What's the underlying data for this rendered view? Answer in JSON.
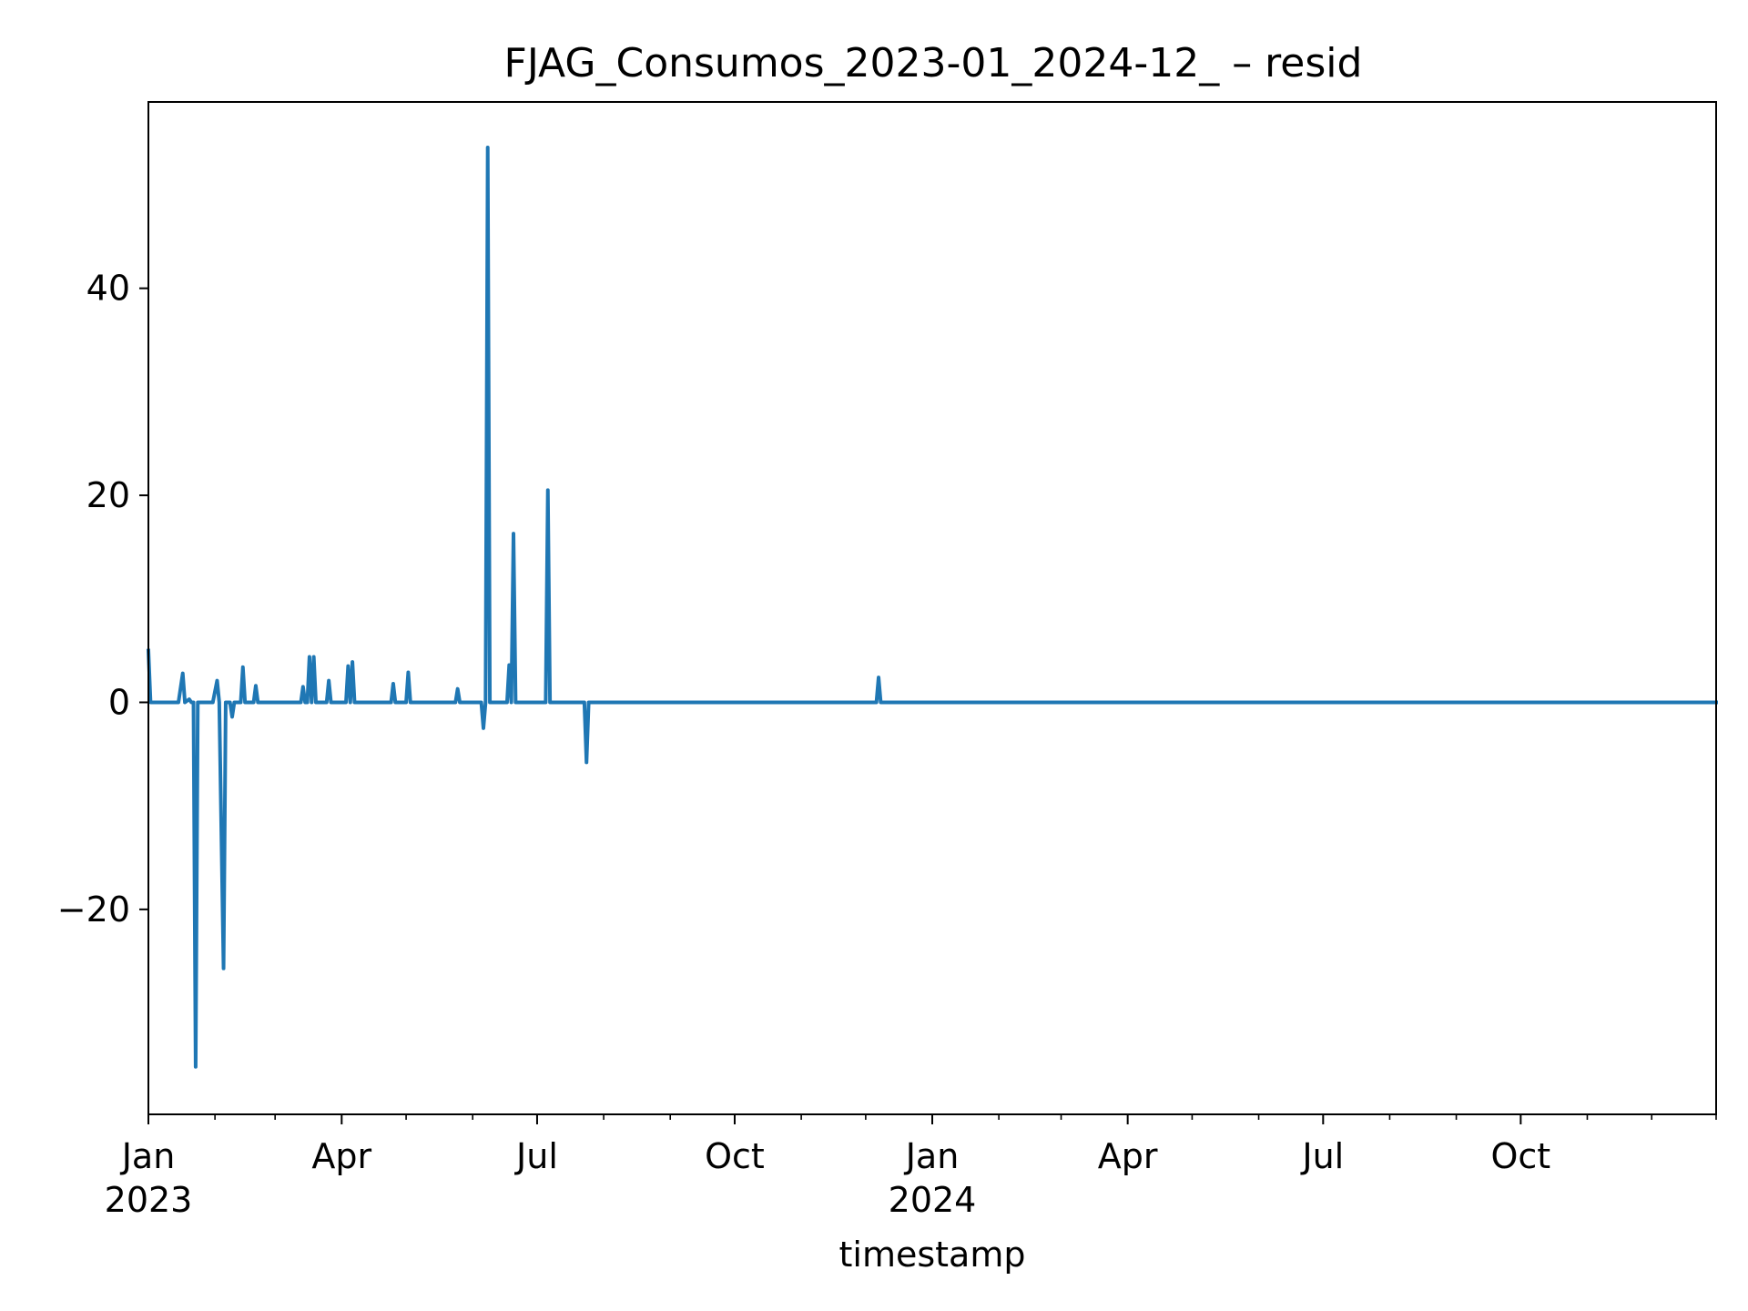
{
  "chart_data": {
    "type": "line",
    "title": "FJAG_Consumos_2023-01_2024-12_ – resid",
    "xlabel": "timestamp",
    "ylabel": "",
    "xlim": [
      "2023-01-01",
      "2024-12-31"
    ],
    "ylim": [
      -39.8,
      58
    ],
    "grid": false,
    "y_ticks": [
      {
        "value": 40,
        "label": "40"
      },
      {
        "value": 20,
        "label": "20"
      },
      {
        "value": 0,
        "label": "0"
      },
      {
        "value": -20,
        "label": "−20"
      }
    ],
    "x_ticks": [
      {
        "date": "2023-01-01",
        "label": "Jan",
        "year_label": "2023"
      },
      {
        "date": "2023-04-01",
        "label": "Apr",
        "year_label": ""
      },
      {
        "date": "2023-07-01",
        "label": "Jul",
        "year_label": ""
      },
      {
        "date": "2023-10-01",
        "label": "Oct",
        "year_label": ""
      },
      {
        "date": "2024-01-01",
        "label": "Jan",
        "year_label": "2024"
      },
      {
        "date": "2024-04-01",
        "label": "Apr",
        "year_label": ""
      },
      {
        "date": "2024-07-01",
        "label": "Jul",
        "year_label": ""
      },
      {
        "date": "2024-10-01",
        "label": "Oct",
        "year_label": ""
      }
    ],
    "x_minor_ticks": [
      "2023-02-01",
      "2023-03-01",
      "2023-05-01",
      "2023-06-01",
      "2023-08-01",
      "2023-09-01",
      "2023-11-01",
      "2023-12-01",
      "2024-02-01",
      "2024-03-01",
      "2024-05-01",
      "2024-06-01",
      "2024-08-01",
      "2024-09-01",
      "2024-11-01",
      "2024-12-01",
      "2024-12-31"
    ],
    "series": [
      {
        "color": "#1f77b4",
        "points": [
          [
            "2023-01-01",
            5
          ],
          [
            "2023-01-02",
            0
          ],
          [
            "2023-01-15",
            0
          ],
          [
            "2023-01-17",
            2.8
          ],
          [
            "2023-01-18",
            0
          ],
          [
            "2023-01-20",
            0.3
          ],
          [
            "2023-01-21",
            0
          ],
          [
            "2023-01-22",
            0
          ],
          [
            "2023-01-23",
            -35.2
          ],
          [
            "2023-01-24",
            0
          ],
          [
            "2023-01-31",
            0
          ],
          [
            "2023-02-02",
            2.1
          ],
          [
            "2023-02-03",
            0
          ],
          [
            "2023-02-05",
            -25.7
          ],
          [
            "2023-02-06",
            0
          ],
          [
            "2023-02-08",
            0
          ],
          [
            "2023-02-09",
            -1.4
          ],
          [
            "2023-02-10",
            0
          ],
          [
            "2023-02-13",
            0
          ],
          [
            "2023-02-14",
            3.4
          ],
          [
            "2023-02-15",
            0
          ],
          [
            "2023-02-19",
            0
          ],
          [
            "2023-02-20",
            1.6
          ],
          [
            "2023-02-21",
            0
          ],
          [
            "2023-03-13",
            0
          ],
          [
            "2023-03-14",
            1.5
          ],
          [
            "2023-03-15",
            0
          ],
          [
            "2023-03-16",
            0
          ],
          [
            "2023-03-17",
            4.4
          ],
          [
            "2023-03-18",
            0
          ],
          [
            "2023-03-19",
            4.4
          ],
          [
            "2023-03-20",
            0
          ],
          [
            "2023-03-25",
            0
          ],
          [
            "2023-03-26",
            2.1
          ],
          [
            "2023-03-27",
            0
          ],
          [
            "2023-04-03",
            0
          ],
          [
            "2023-04-04",
            3.5
          ],
          [
            "2023-04-05",
            0
          ],
          [
            "2023-04-06",
            3.9
          ],
          [
            "2023-04-07",
            0
          ],
          [
            "2023-04-24",
            0
          ],
          [
            "2023-04-25",
            1.8
          ],
          [
            "2023-04-26",
            0
          ],
          [
            "2023-05-01",
            0
          ],
          [
            "2023-05-02",
            2.9
          ],
          [
            "2023-05-03",
            0
          ],
          [
            "2023-05-24",
            0
          ],
          [
            "2023-05-25",
            1.3
          ],
          [
            "2023-05-26",
            0
          ],
          [
            "2023-06-05",
            0
          ],
          [
            "2023-06-06",
            -2.5
          ],
          [
            "2023-06-07",
            0
          ],
          [
            "2023-06-08",
            53.6
          ],
          [
            "2023-06-09",
            0
          ],
          [
            "2023-06-17",
            0
          ],
          [
            "2023-06-18",
            3.6
          ],
          [
            "2023-06-19",
            0
          ],
          [
            "2023-06-20",
            16.3
          ],
          [
            "2023-06-21",
            0
          ],
          [
            "2023-07-05",
            0
          ],
          [
            "2023-07-06",
            20.5
          ],
          [
            "2023-07-07",
            0
          ],
          [
            "2023-07-23",
            0
          ],
          [
            "2023-07-24",
            -5.8
          ],
          [
            "2023-07-25",
            0
          ],
          [
            "2023-12-06",
            0
          ],
          [
            "2023-12-07",
            2.4
          ],
          [
            "2023-12-08",
            0
          ],
          [
            "2024-12-31",
            0
          ]
        ]
      }
    ]
  }
}
